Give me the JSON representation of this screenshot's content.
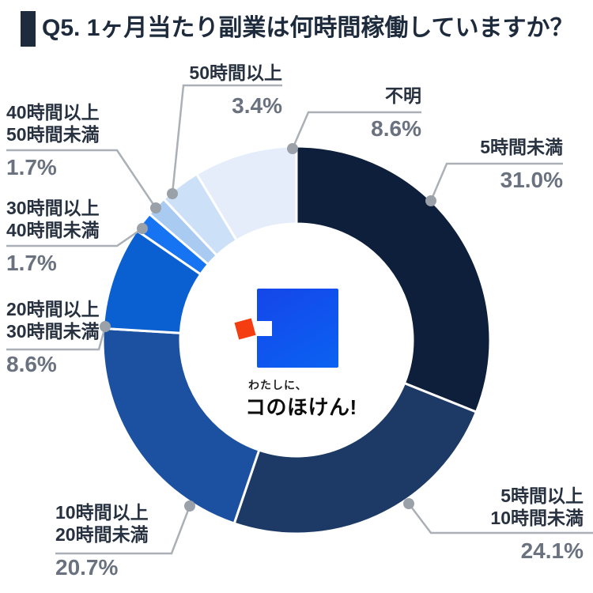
{
  "header": {
    "title": "Q5. 1ヶ月当たり副業は何時間稼働していますか？"
  },
  "chart_data": {
    "type": "pie",
    "subtype": "donut",
    "title": "Q5. 1ヶ月当たり副業は何時間稼働していますか？",
    "unit": "%",
    "order": "clockwise-from-top",
    "legend_position": "outside-callouts",
    "segments": [
      {
        "label": "5時間未満",
        "value": 31.0,
        "color": "#0d1f3a"
      },
      {
        "label": "5時間以上10時間未満",
        "value": 24.1,
        "color": "#1d3a66"
      },
      {
        "label": "10時間以上20時間未満",
        "value": 20.7,
        "color": "#1c51a1"
      },
      {
        "label": "20時間以上30時間未満",
        "value": 8.6,
        "color": "#0b60d1"
      },
      {
        "label": "30時間以上40時間未満",
        "value": 1.7,
        "color": "#1673f2"
      },
      {
        "label": "40時間以上50時間未満",
        "value": 1.7,
        "color": "#a9cbf2"
      },
      {
        "label": "50時間以上",
        "value": 3.4,
        "color": "#cce0f7"
      },
      {
        "label": "不明",
        "value": 8.6,
        "color": "#e4edf9"
      }
    ],
    "callouts": [
      {
        "line1": "5時間未満",
        "line2": "",
        "pct": "31.0%"
      },
      {
        "line1": "5時間以上",
        "line2": "10時間未満",
        "pct": "24.1%"
      },
      {
        "line1": "10時間以上",
        "line2": "20時間未満",
        "pct": "20.7%"
      },
      {
        "line1": "20時間以上",
        "line2": "30時間未満",
        "pct": "8.6%"
      },
      {
        "line1": "30時間以上",
        "line2": "40時間未満",
        "pct": "1.7%"
      },
      {
        "line1": "40時間以上",
        "line2": "50時間未満",
        "pct": "1.7%"
      },
      {
        "line1": "50時間以上",
        "line2": "",
        "pct": "3.4%"
      },
      {
        "line1": "不明",
        "line2": "",
        "pct": "8.6%"
      }
    ]
  },
  "logo": {
    "tagline": "わたしに、",
    "name": "コのほけん!"
  },
  "colors": {
    "title_text": "#1d2b3d",
    "label_text": "#273140",
    "pct_text": "#6a7280",
    "leader_line": "#abb0b6",
    "leader_dot": "#9aa1a8",
    "segment_separator": "#ffffff",
    "logo_orange": "#f43d10",
    "logo_blue_start": "#1546e9",
    "logo_blue_end": "#0a62f2"
  }
}
